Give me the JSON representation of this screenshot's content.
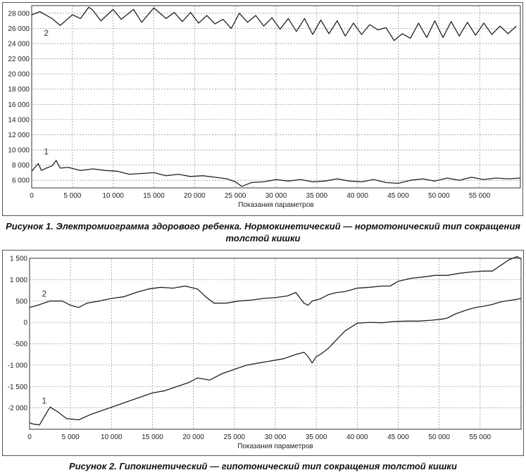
{
  "chart_data": [
    {
      "type": "line",
      "caption": "Рисунок 1. Электромиограмма здорового ребенка. Нормокинетический — нормотонический тип сокращения толстой кишки",
      "xlabel": "Показания параметров",
      "xlim": [
        0,
        60000
      ],
      "ylim": [
        5000,
        29000
      ],
      "grid": true,
      "x_tick_values": [
        0,
        5000,
        10000,
        15000,
        20000,
        25000,
        30000,
        35000,
        40000,
        45000,
        50000,
        55000
      ],
      "x_tick_labels": [
        "0",
        "5 000",
        "10 000",
        "15 000",
        "20 000",
        "25 000",
        "30 000",
        "35 000",
        "40 000",
        "45 000",
        "50 000",
        "55 000"
      ],
      "y_tick_values": [
        6000,
        8000,
        10000,
        12000,
        14000,
        16000,
        18000,
        20000,
        22000,
        24000,
        26000,
        28000
      ],
      "y_tick_labels": [
        "6 000",
        "8 000",
        "10 000",
        "12 000",
        "14 000",
        "16 000",
        "18 000",
        "20 000",
        "22 000",
        "24 000",
        "26 000",
        "28 000"
      ],
      "series": [
        {
          "label": "2",
          "label_at": [
            1500,
            25000
          ],
          "x": [
            0,
            1000,
            2500,
            3500,
            5000,
            6000,
            7000,
            7500,
            8500,
            10000,
            11000,
            12500,
            13500,
            15000,
            16500,
            17500,
            18500,
            19500,
            20500,
            21500,
            22500,
            23500,
            24500,
            25500,
            26500,
            27500,
            28500,
            29500,
            30500,
            31500,
            32500,
            33500,
            34500,
            35500,
            36500,
            37500,
            38500,
            39500,
            40500,
            41500,
            42500,
            43500,
            44500,
            45500,
            46500,
            47500,
            48500,
            49500,
            50500,
            51500,
            52500,
            53500,
            54500,
            55500,
            56500,
            57500,
            58500,
            59500
          ],
          "y": [
            27800,
            28200,
            27300,
            26400,
            27800,
            27300,
            28800,
            28400,
            27000,
            28500,
            27200,
            28500,
            26800,
            28700,
            27300,
            28100,
            26900,
            28100,
            26700,
            27700,
            26600,
            27200,
            26000,
            28000,
            26800,
            27700,
            26300,
            27400,
            25900,
            27300,
            25600,
            27300,
            25200,
            27100,
            25300,
            27000,
            25000,
            26700,
            25200,
            26500,
            25800,
            26100,
            24400,
            25300,
            24700,
            26700,
            24800,
            27000,
            24800,
            26900,
            25000,
            26800,
            25100,
            26700,
            25200,
            26300,
            25300,
            26300
          ]
        },
        {
          "label": "1",
          "label_at": [
            1500,
            9400
          ],
          "x": [
            0,
            800,
            1200,
            1800,
            2500,
            3000,
            3500,
            4500,
            6000,
            7500,
            9000,
            10500,
            12000,
            13500,
            15000,
            16500,
            18000,
            19500,
            21000,
            22500,
            24000,
            25000,
            25800,
            27000,
            28500,
            30000,
            31500,
            33000,
            34500,
            36000,
            37500,
            39000,
            40500,
            42000,
            43500,
            45000,
            46500,
            48000,
            49500,
            51000,
            52500,
            54000,
            55500,
            57000,
            58500,
            60000
          ],
          "y": [
            7200,
            8200,
            7300,
            7600,
            7900,
            8600,
            7600,
            7700,
            7300,
            7500,
            7300,
            7200,
            6800,
            6900,
            7000,
            6600,
            6800,
            6500,
            6600,
            6400,
            6200,
            5800,
            5200,
            5700,
            5800,
            6100,
            5900,
            6100,
            5800,
            5900,
            6200,
            5900,
            5800,
            6100,
            5700,
            5600,
            6000,
            6200,
            5900,
            6300,
            6000,
            6400,
            6100,
            6300,
            6200,
            6300
          ]
        }
      ]
    },
    {
      "type": "line",
      "caption": "Рисунок 2. Гипокинетический — гипотонический тип сокращения толстой кишки",
      "xlabel": "Показания параметров",
      "xlim": [
        0,
        60000
      ],
      "ylim": [
        -2500,
        1500
      ],
      "grid": true,
      "x_tick_values": [
        0,
        5000,
        10000,
        15000,
        20000,
        25000,
        30000,
        35000,
        40000,
        45000,
        50000,
        55000
      ],
      "x_tick_labels": [
        "0",
        "5 000",
        "10 000",
        "15 000",
        "20 000",
        "25 000",
        "30 000",
        "35 000",
        "40 000",
        "45 000",
        "50 000",
        "55 000"
      ],
      "y_tick_values": [
        1500,
        1000,
        500,
        0,
        -500,
        -1000,
        -1500,
        -2000
      ],
      "y_tick_labels": [
        "1 500",
        "1 000",
        "500",
        "0",
        "-500",
        "-1 000",
        "-1 500",
        "-2 000"
      ],
      "series": [
        {
          "label": "2",
          "label_at": [
            1500,
            600
          ],
          "x": [
            0,
            1000,
            2500,
            4000,
            5000,
            6000,
            7000,
            8500,
            10000,
            11500,
            13000,
            14500,
            16000,
            17500,
            19000,
            20500,
            21500,
            22500,
            24000,
            25500,
            27000,
            28500,
            30000,
            31500,
            32500,
            33500,
            34000,
            34500,
            35500,
            36500,
            37500,
            38500,
            40000,
            41500,
            43000,
            44000,
            45000,
            46500,
            48000,
            49500,
            51000,
            52500,
            54000,
            55500,
            56500,
            57500,
            58500,
            59500,
            60000
          ],
          "y": [
            350,
            400,
            500,
            500,
            400,
            350,
            450,
            500,
            560,
            600,
            700,
            780,
            820,
            800,
            850,
            780,
            600,
            450,
            450,
            500,
            520,
            560,
            580,
            620,
            700,
            450,
            400,
            500,
            550,
            650,
            700,
            720,
            800,
            820,
            850,
            850,
            960,
            1030,
            1060,
            1100,
            1100,
            1150,
            1180,
            1200,
            1200,
            1330,
            1460,
            1540,
            1480
          ]
        },
        {
          "label": "1",
          "label_at": [
            1500,
            -1900
          ],
          "x": [
            0,
            500,
            1200,
            1500,
            2500,
            3500,
            4500,
            6000,
            7500,
            9000,
            10500,
            12000,
            13500,
            15000,
            16500,
            18000,
            19500,
            20500,
            22000,
            23500,
            25000,
            26500,
            28000,
            29500,
            31000,
            32500,
            33500,
            34000,
            34500,
            35000,
            35500,
            36500,
            37500,
            38500,
            40000,
            41500,
            43000,
            44500,
            46000,
            47500,
            49000,
            50500,
            51000,
            52000,
            53500,
            54500,
            55500,
            56500,
            57500,
            58500,
            59500,
            60000
          ],
          "y": [
            -2350,
            -2380,
            -2400,
            -2300,
            -1980,
            -2100,
            -2250,
            -2280,
            -2150,
            -2050,
            -1950,
            -1850,
            -1750,
            -1650,
            -1600,
            -1500,
            -1400,
            -1300,
            -1350,
            -1200,
            -1100,
            -1000,
            -950,
            -900,
            -850,
            -750,
            -700,
            -800,
            -950,
            -800,
            -750,
            -600,
            -400,
            -200,
            -20,
            0,
            -10,
            20,
            30,
            30,
            50,
            80,
            100,
            200,
            300,
            350,
            380,
            420,
            480,
            510,
            540,
            560
          ]
        }
      ]
    }
  ]
}
